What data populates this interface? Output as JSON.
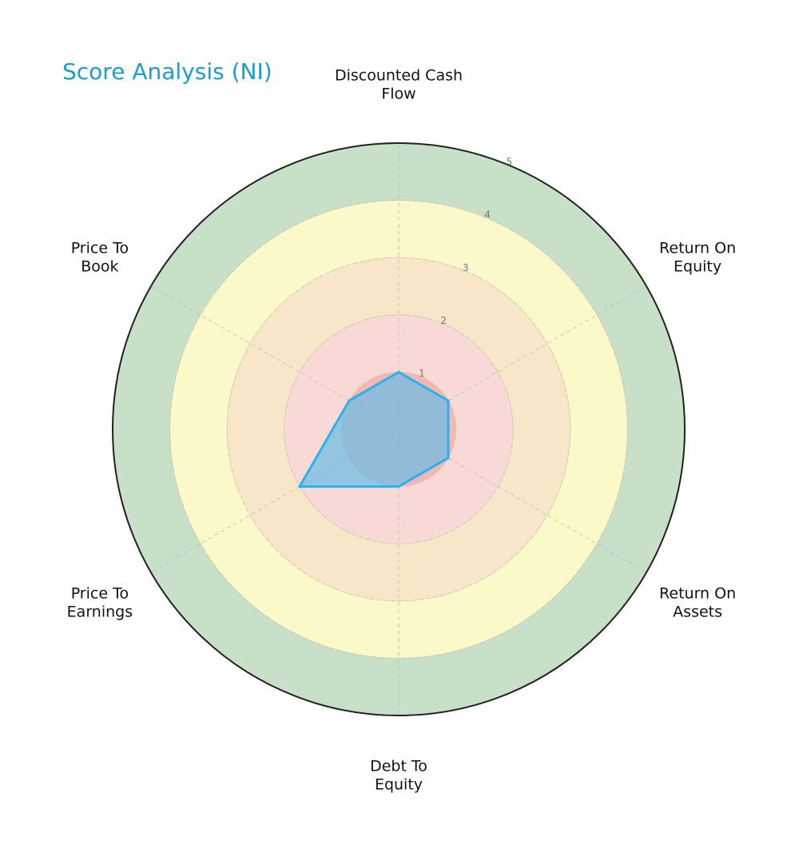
{
  "chart_data": {
    "type": "radar",
    "title": "Score Analysis (NI)",
    "categories": [
      "Discounted Cash Flow",
      "Return On Equity",
      "Return On Assets",
      "Debt To Equity",
      "Price To Earnings",
      "Price To Book"
    ],
    "category_lines": [
      [
        "Discounted Cash",
        "Flow"
      ],
      [
        "Return On",
        "Equity"
      ],
      [
        "Return On",
        "Assets"
      ],
      [
        "Debt To",
        "Equity"
      ],
      [
        "Price To",
        "Earnings"
      ],
      [
        "Price To",
        "Book"
      ]
    ],
    "values": [
      1,
      1,
      1,
      1,
      2,
      1
    ],
    "rlim": [
      0,
      5
    ],
    "rticks": [
      1,
      2,
      3,
      4,
      5
    ],
    "bands": [
      {
        "from": 0,
        "to": 1,
        "color": "#f4b6b0"
      },
      {
        "from": 1,
        "to": 2,
        "color": "#f9d9d5"
      },
      {
        "from": 2,
        "to": 3,
        "color": "#f7e6c8"
      },
      {
        "from": 3,
        "to": 4,
        "color": "#fbf8c9"
      },
      {
        "from": 4,
        "to": 5,
        "color": "#c8e0c8"
      }
    ],
    "series_color": "#29b2ef",
    "fill_color": "#6bbce6",
    "grid": true
  }
}
